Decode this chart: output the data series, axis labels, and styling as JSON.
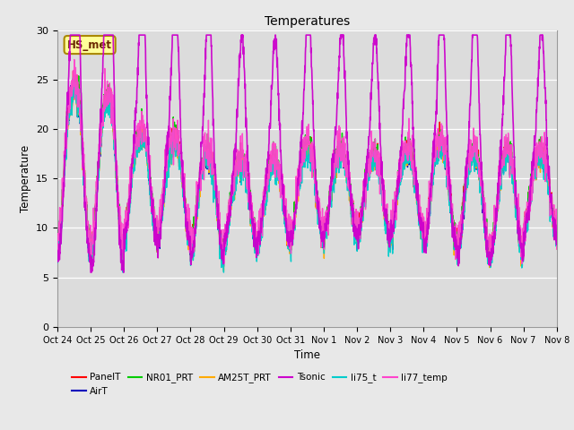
{
  "title": "Temperatures",
  "xlabel": "Time",
  "ylabel": "Temperature",
  "ylim": [
    0,
    30
  ],
  "yticks": [
    0,
    5,
    10,
    15,
    20,
    25,
    30
  ],
  "plot_bg": "#dcdcdc",
  "fig_bg": "#e8e8e8",
  "series_order": [
    "PanelT",
    "AirT",
    "NR01_PRT",
    "AM25T_PRT",
    "li75_t",
    "li77_temp",
    "Tsonic"
  ],
  "series": {
    "PanelT": {
      "color": "#ff0000",
      "lw": 1.0
    },
    "AirT": {
      "color": "#0000bb",
      "lw": 1.0
    },
    "NR01_PRT": {
      "color": "#00cc00",
      "lw": 1.0
    },
    "AM25T_PRT": {
      "color": "#ffaa00",
      "lw": 1.0
    },
    "Tsonic": {
      "color": "#cc00cc",
      "lw": 1.2
    },
    "li75_t": {
      "color": "#00cccc",
      "lw": 1.0
    },
    "li77_temp": {
      "color": "#ff44cc",
      "lw": 1.0
    }
  },
  "legend_order": [
    "PanelT",
    "AirT",
    "NR01_PRT",
    "AM25T_PRT",
    "Tsonic",
    "li75_t",
    "li77_temp"
  ],
  "annotation": {
    "text": "HS_met",
    "facecolor": "#ffff99",
    "edgecolor": "#aa8800"
  },
  "xtick_labels": [
    "Oct 24",
    "Oct 25",
    "Oct 26",
    "Oct 27",
    "Oct 28",
    "Oct 29",
    "Oct 30",
    "Oct 31",
    "Nov 1",
    "Nov 2",
    "Nov 3",
    "Nov 4",
    "Nov 5",
    "Nov 6",
    "Nov 7",
    "Nov 8"
  ],
  "num_days": 15
}
